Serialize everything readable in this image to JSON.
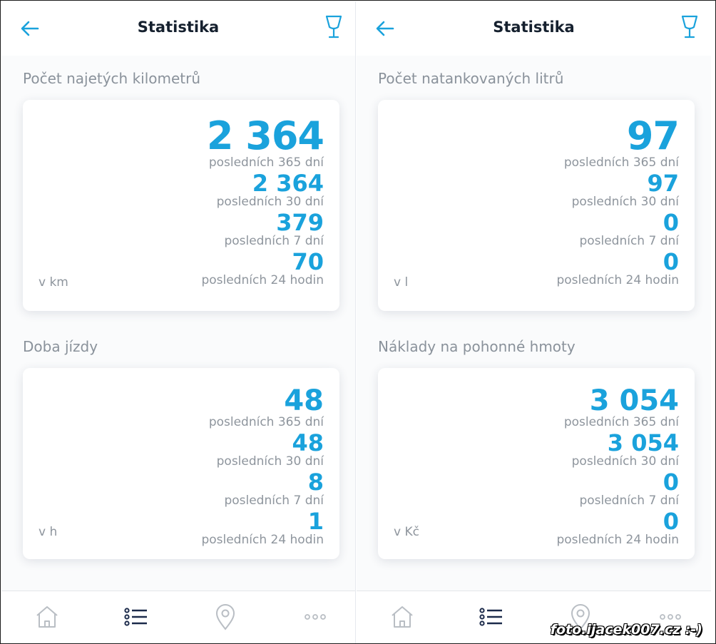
{
  "screens": [
    {
      "header": {
        "title": "Statistika"
      },
      "cards": [
        {
          "title": "Počet najetých kilometrů",
          "unit": "v km",
          "stats": [
            {
              "value": "2 364",
              "label": "posledních 365 dní"
            },
            {
              "value": "2 364",
              "label": "posledních 30 dní"
            },
            {
              "value": "379",
              "label": "posledních 7 dní"
            },
            {
              "value": "70",
              "label": "posledních 24 hodin"
            }
          ]
        },
        {
          "title": "Doba jízdy",
          "unit": "v h",
          "stats": [
            {
              "value": "48",
              "label": "posledních 365 dní"
            },
            {
              "value": "48",
              "label": "posledních 30 dní"
            },
            {
              "value": "8",
              "label": "posledních 7 dní"
            },
            {
              "value": "1",
              "label": "posledních 24 hodin"
            }
          ]
        }
      ]
    },
    {
      "header": {
        "title": "Statistika"
      },
      "cards": [
        {
          "title": "Počet natankovaných litrů",
          "unit": "v l",
          "stats": [
            {
              "value": "97",
              "label": "posledních 365 dní"
            },
            {
              "value": "97",
              "label": "posledních 30 dní"
            },
            {
              "value": "0",
              "label": "posledních 7 dní"
            },
            {
              "value": "0",
              "label": "posledních 24 hodin"
            }
          ]
        },
        {
          "title": "Náklady na pohonné hmoty",
          "unit": "v Kč",
          "stats": [
            {
              "value": "3 054",
              "label": "posledních 365 dní"
            },
            {
              "value": "3 054",
              "label": "posledních 30 dní"
            },
            {
              "value": "0",
              "label": "posledních 7 dní"
            },
            {
              "value": "0",
              "label": "posledních 24 hodin"
            }
          ]
        }
      ]
    }
  ],
  "tabbar": {
    "icons": [
      "home-icon",
      "list-icon",
      "location-pin-icon",
      "more-icon"
    ],
    "active_color": "#1b2a4a",
    "inactive_color": "#b9bec4"
  },
  "colors": {
    "accent": "#1aa2dc",
    "label": "#8e959d",
    "title": "#15202e"
  },
  "watermark": "foto.ijacek007.cz :-)"
}
